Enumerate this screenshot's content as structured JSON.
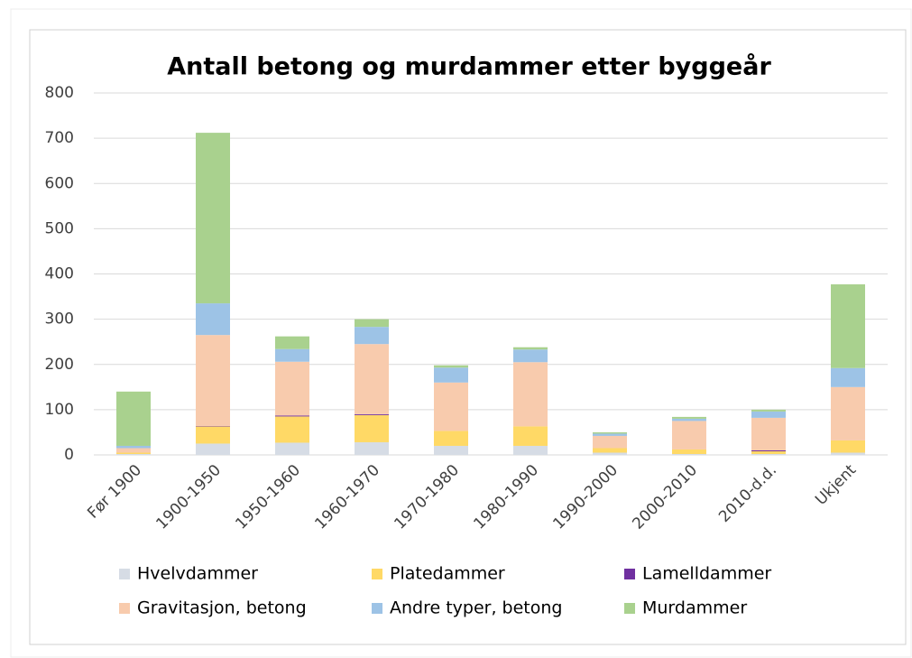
{
  "chart_data": {
    "type": "bar",
    "stacked": true,
    "title": "Antall betong og murdammer etter byggeår",
    "categories": [
      "Før 1900",
      "1900-1950",
      "1950-1960",
      "1960-1970",
      "1970-1980",
      "1980-1990",
      "1990-2000",
      "2000-2010",
      "2010-d.d.",
      "Ukjent"
    ],
    "series": [
      {
        "name": "Hvelvdammer",
        "color": "#d6dce5",
        "values": [
          2,
          25,
          27,
          28,
          20,
          20,
          5,
          2,
          2,
          5
        ]
      },
      {
        "name": "Platedammer",
        "color": "#ffd966",
        "values": [
          3,
          38,
          58,
          60,
          33,
          43,
          10,
          10,
          6,
          27
        ]
      },
      {
        "name": "Lamelldammer",
        "color": "#7030a0",
        "values": [
          0,
          1,
          2,
          2,
          0,
          0,
          0,
          0,
          2,
          0
        ]
      },
      {
        "name": "Gravitasjon, betong",
        "color": "#f8cbad",
        "values": [
          10,
          201,
          119,
          155,
          107,
          142,
          27,
          63,
          72,
          118
        ]
      },
      {
        "name": "Andre typer, betong",
        "color": "#9dc3e6",
        "values": [
          5,
          70,
          28,
          38,
          33,
          28,
          5,
          5,
          14,
          42
        ]
      },
      {
        "name": "Murdammer",
        "color": "#a9d18e",
        "values": [
          120,
          377,
          28,
          17,
          5,
          5,
          3,
          4,
          4,
          185
        ]
      }
    ],
    "ylim": [
      0,
      800
    ],
    "yticks": [
      0,
      100,
      200,
      300,
      400,
      500,
      600,
      700,
      800
    ],
    "grid": true,
    "legend": "bottom"
  }
}
